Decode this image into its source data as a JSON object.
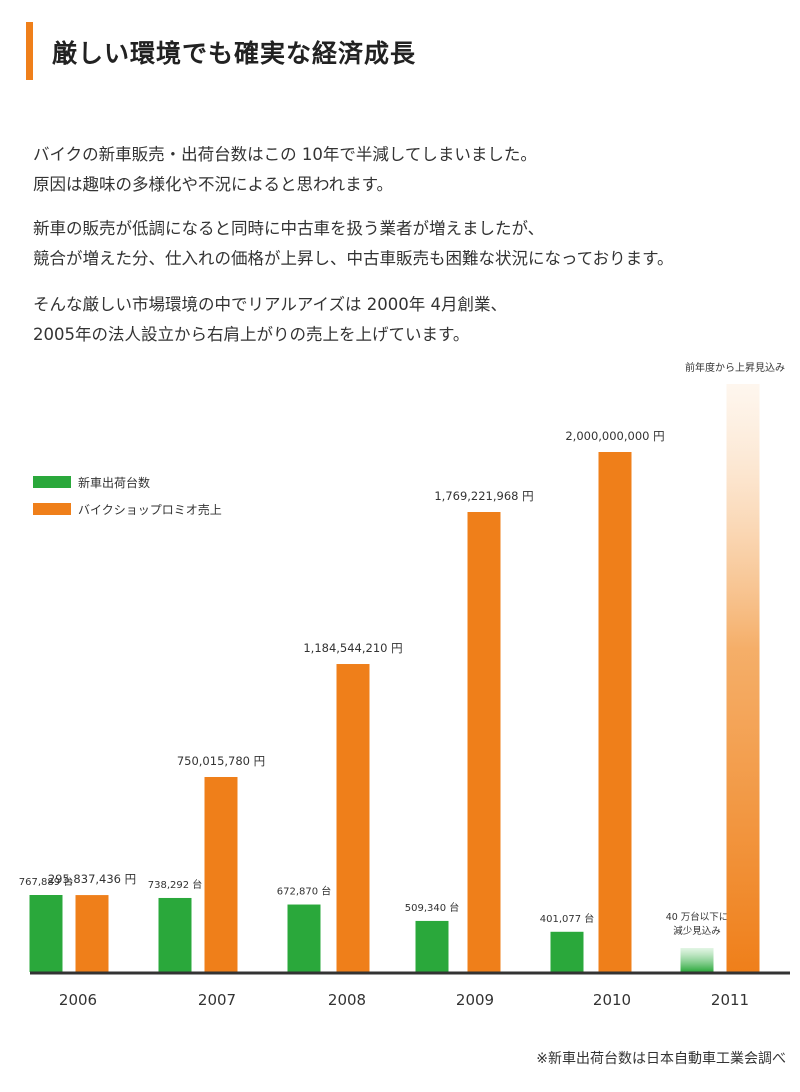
{
  "title": "厳しい環境でも確実な経済成長",
  "paragraphs": [
    [
      "バイクの新車販売・出荷台数はこの 10年で半減してしまいました。",
      "原因は趣味の多様化や不況によると思われます。"
    ],
    [
      "新車の販売が低調になると同時に中古車を扱う業者が増えましたが、",
      "競合が増えた分、仕入れの価格が上昇し、中古車販売も困難な状況になっております。"
    ],
    [
      "そんな厳しい市場環境の中でリアルアイズは 2000年 4月創業、",
      "2005年の法人設立から右肩上がりの売上を上げています。"
    ]
  ],
  "note": "※新車出荷台数は日本自動車工業会調べ",
  "colors": {
    "accent": "#ef7f1a",
    "shipments": "#2aa83b",
    "sales": "#ef7f1a",
    "axis": "#333333"
  },
  "chart_data": {
    "type": "bar",
    "categories": [
      "2006",
      "2007",
      "2008",
      "2009",
      "2010",
      "2011"
    ],
    "legend_position": "top-left",
    "series": [
      {
        "name": "新車出荷台数",
        "values": [
          767889,
          738292,
          672870,
          509340,
          401077,
          null
        ],
        "labels": [
          "767,889 台",
          "738,292 台",
          "672,870 台",
          "509,340 台",
          "401,077 台",
          "40 万台以下に\n減少見込み"
        ],
        "projected_2011": "< 400000 (gradient bar)"
      },
      {
        "name": "バイクショップロミオ売上",
        "values": [
          295837436,
          750015780,
          1184544210,
          1769221968,
          2000000000,
          null
        ],
        "labels": [
          "295,837,436 円",
          "750,015,780 円",
          "1,184,544,210 円",
          "1,769,221,968 円",
          "2,000,000,000 円",
          "前年度から上昇見込み"
        ],
        "projected_2011": "increase (gradient bar)"
      }
    ]
  }
}
